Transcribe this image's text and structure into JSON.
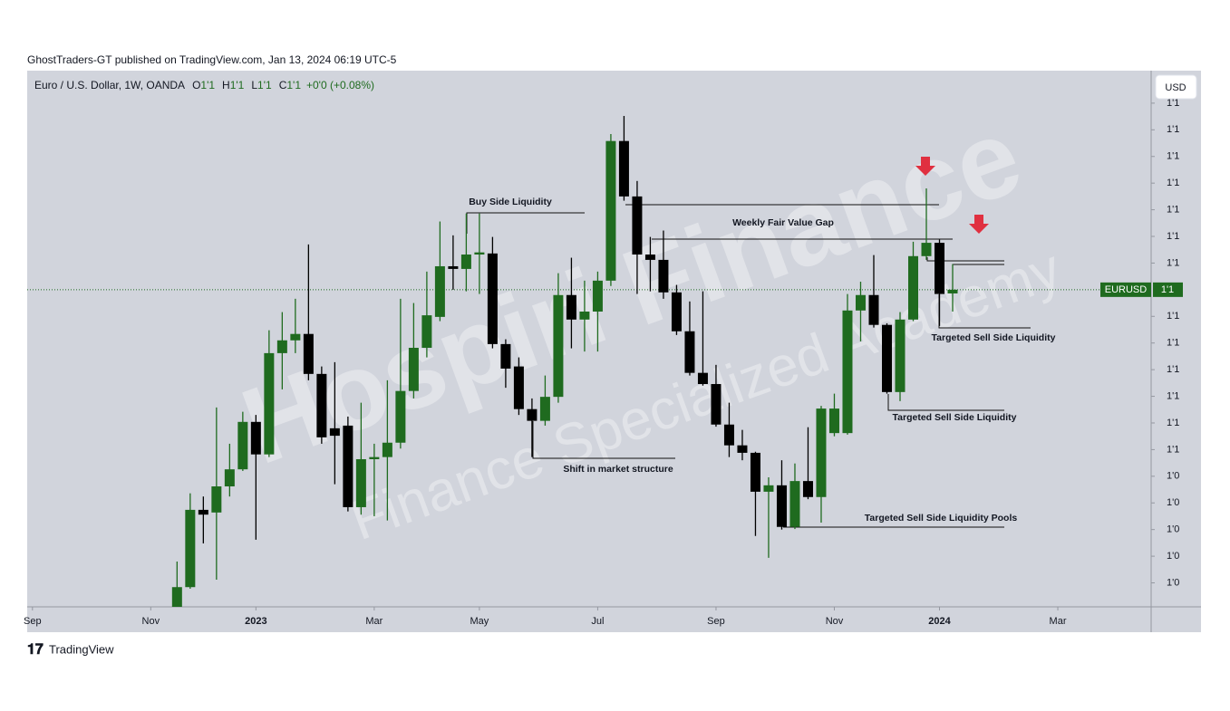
{
  "chart_data": {
    "type": "candlestick",
    "published": "GhostTraders-GT published on TradingView.com, Jan 13, 2024 06:19 UTC-5",
    "title": "Euro / U.S. Dollar, 1W, OANDA",
    "ohlc_legend": [
      {
        "label": "O",
        "value": "1'1"
      },
      {
        "label": "H",
        "value": "1'1"
      },
      {
        "label": "L",
        "value": "1'1"
      },
      {
        "label": "C",
        "value": "1'1"
      }
    ],
    "change": "+0'0 (+0.08%)",
    "currency": "USD",
    "symbol": "EURUSD",
    "last_price": {
      "value": 1.095,
      "label": "1'1"
    },
    "brand": "TradingView",
    "watermark": [
      "Hospiri Finance",
      "Finance Specialized Academy"
    ],
    "annotations": [
      "Buy Side Liquidity",
      "Weekly Fair Value Gap",
      "Targeted Sell Side Liquidity",
      "Targeted Sell Side Liquidity",
      "Shift in market structure",
      "Targeted Sell Side Liquidity Pools"
    ],
    "up_color": "#1f6b1f",
    "down_color": "#000000",
    "candles": [
      [
        1.0355,
        1.044,
        1.0355,
        1.0392
      ],
      [
        1.0392,
        1.0568,
        1.0389,
        1.0537
      ],
      [
        1.0537,
        1.0562,
        1.0474,
        1.0528
      ],
      [
        1.0532,
        1.0729,
        1.0406,
        1.0581
      ],
      [
        1.0581,
        1.0661,
        1.0562,
        1.0613
      ],
      [
        1.0613,
        1.0721,
        1.061,
        1.0702
      ],
      [
        1.0702,
        1.0715,
        1.0481,
        1.0641
      ],
      [
        1.0641,
        1.0874,
        1.0636,
        1.0831
      ],
      [
        1.0831,
        1.0908,
        1.0763,
        1.0855
      ],
      [
        1.0855,
        1.0933,
        1.0831,
        1.0867
      ],
      [
        1.0867,
        1.1035,
        1.078,
        1.0792
      ],
      [
        1.0792,
        1.0806,
        1.0661,
        1.0673
      ],
      [
        1.069,
        1.0814,
        1.0585,
        1.0676
      ],
      [
        1.0695,
        1.0712,
        1.0534,
        1.0542
      ],
      [
        1.0542,
        1.0738,
        1.0528,
        1.0632
      ],
      [
        1.0632,
        1.0661,
        1.0525,
        1.0636
      ],
      [
        1.0636,
        1.078,
        1.0517,
        1.0663
      ],
      [
        1.0663,
        1.0933,
        1.0652,
        1.076
      ],
      [
        1.076,
        1.0925,
        1.0746,
        1.0841
      ],
      [
        1.0841,
        1.0984,
        1.0823,
        1.0902
      ],
      [
        1.0899,
        1.1078,
        1.0891,
        1.0994
      ],
      [
        1.0994,
        1.1052,
        1.095,
        1.0989
      ],
      [
        1.0989,
        1.1093,
        1.0947,
        1.1016
      ],
      [
        1.1016,
        1.1093,
        1.0942,
        1.102
      ],
      [
        1.1018,
        1.1049,
        1.084,
        1.0848
      ],
      [
        1.0848,
        1.0857,
        1.0766,
        1.0802
      ],
      [
        1.0806,
        1.0823,
        1.0715,
        1.0726
      ],
      [
        1.0726,
        1.0746,
        1.0636,
        1.0704
      ],
      [
        1.0704,
        1.0789,
        1.0695,
        1.0749
      ],
      [
        1.0749,
        1.0981,
        1.0738,
        1.094
      ],
      [
        1.094,
        1.101,
        1.084,
        1.0894
      ],
      [
        1.0894,
        1.0967,
        1.0834,
        1.0909
      ],
      [
        1.0909,
        1.0984,
        1.0834,
        1.0967
      ],
      [
        1.0967,
        1.1242,
        1.0957,
        1.1229
      ],
      [
        1.1229,
        1.1276,
        1.1117,
        1.1125
      ],
      [
        1.1125,
        1.1154,
        1.0942,
        1.1016
      ],
      [
        1.1016,
        1.1049,
        1.0947,
        1.1006
      ],
      [
        1.1006,
        1.1061,
        1.0933,
        1.0945
      ],
      [
        1.0945,
        1.0959,
        1.0865,
        1.0872
      ],
      [
        1.0872,
        1.0928,
        1.0789,
        1.0794
      ],
      [
        1.0794,
        1.0947,
        1.077,
        1.0773
      ],
      [
        1.0773,
        1.0809,
        1.0693,
        1.0697
      ],
      [
        1.0697,
        1.0738,
        1.0636,
        1.0658
      ],
      [
        1.0658,
        1.0687,
        1.063,
        1.0644
      ],
      [
        1.0644,
        1.0646,
        1.0488,
        1.0571
      ],
      [
        1.0571,
        1.0598,
        1.0447,
        1.0583
      ],
      [
        1.0583,
        1.063,
        1.05,
        1.0505
      ],
      [
        1.0505,
        1.0624,
        1.0501,
        1.0591
      ],
      [
        1.0591,
        1.0692,
        1.0557,
        1.0561
      ],
      [
        1.0561,
        1.0732,
        1.0513,
        1.0727
      ],
      [
        1.0681,
        1.0755,
        1.0675,
        1.0727
      ],
      [
        1.0681,
        1.0942,
        1.0678,
        1.0911
      ],
      [
        1.0911,
        1.0965,
        1.0853,
        1.094
      ],
      [
        1.094,
        1.1015,
        1.0879,
        1.0884
      ],
      [
        1.0884,
        1.0887,
        1.0755,
        1.0758
      ],
      [
        1.0758,
        1.0908,
        1.0741,
        1.0894
      ],
      [
        1.0894,
        1.104,
        1.0891,
        1.1013
      ],
      [
        1.1013,
        1.114,
        1.1006,
        1.1038
      ],
      [
        1.1038,
        1.1044,
        1.0882,
        1.0942
      ],
      [
        1.0943,
        1.0998,
        1.0909,
        1.095
      ]
    ],
    "xlim": [
      -11.4,
      74.1
    ],
    "xticks": [
      {
        "value": -11,
        "label": "Sep"
      },
      {
        "value": -2,
        "label": "Nov"
      },
      {
        "value": 6,
        "label": "2023"
      },
      {
        "value": 15,
        "label": "Mar"
      },
      {
        "value": 23,
        "label": "May"
      },
      {
        "value": 32,
        "label": "Jul"
      },
      {
        "value": 41,
        "label": "Sep"
      },
      {
        "value": 50,
        "label": "Nov"
      },
      {
        "value": 58,
        "label": "2024"
      },
      {
        "value": 67,
        "label": "Mar"
      }
    ],
    "ylim": [
      1.0355,
      1.1361
    ],
    "yticks": [
      {
        "value": 1.13,
        "label": "1'1"
      },
      {
        "value": 1.125,
        "label": "1'1"
      },
      {
        "value": 1.12,
        "label": "1'1"
      },
      {
        "value": 1.115,
        "label": "1'1"
      },
      {
        "value": 1.11,
        "label": "1'1"
      },
      {
        "value": 1.105,
        "label": "1'1"
      },
      {
        "value": 1.1,
        "label": "1'1"
      },
      {
        "value": 1.09,
        "label": "1'1"
      },
      {
        "value": 1.085,
        "label": "1'1"
      },
      {
        "value": 1.08,
        "label": "1'1"
      },
      {
        "value": 1.075,
        "label": "1'1"
      },
      {
        "value": 1.07,
        "label": "1'1"
      },
      {
        "value": 1.065,
        "label": "1'1"
      },
      {
        "value": 1.06,
        "label": "1'0"
      },
      {
        "value": 1.055,
        "label": "1'0"
      },
      {
        "value": 1.05,
        "label": "1'0"
      },
      {
        "value": 1.045,
        "label": "1'0"
      },
      {
        "value": 1.04,
        "label": "1'0"
      }
    ]
  }
}
